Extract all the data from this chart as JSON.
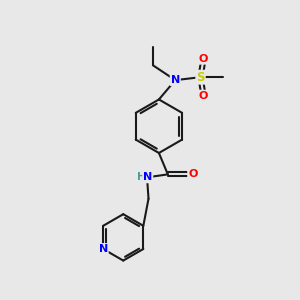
{
  "background_color": "#e8e8e8",
  "bond_color": "#1a1a1a",
  "atom_colors": {
    "N": "#0000ff",
    "O": "#ff0000",
    "S": "#cccc00",
    "C": "#1a1a1a",
    "NH": "#4a9a9a"
  },
  "figsize": [
    3.0,
    3.0
  ],
  "dpi": 100
}
